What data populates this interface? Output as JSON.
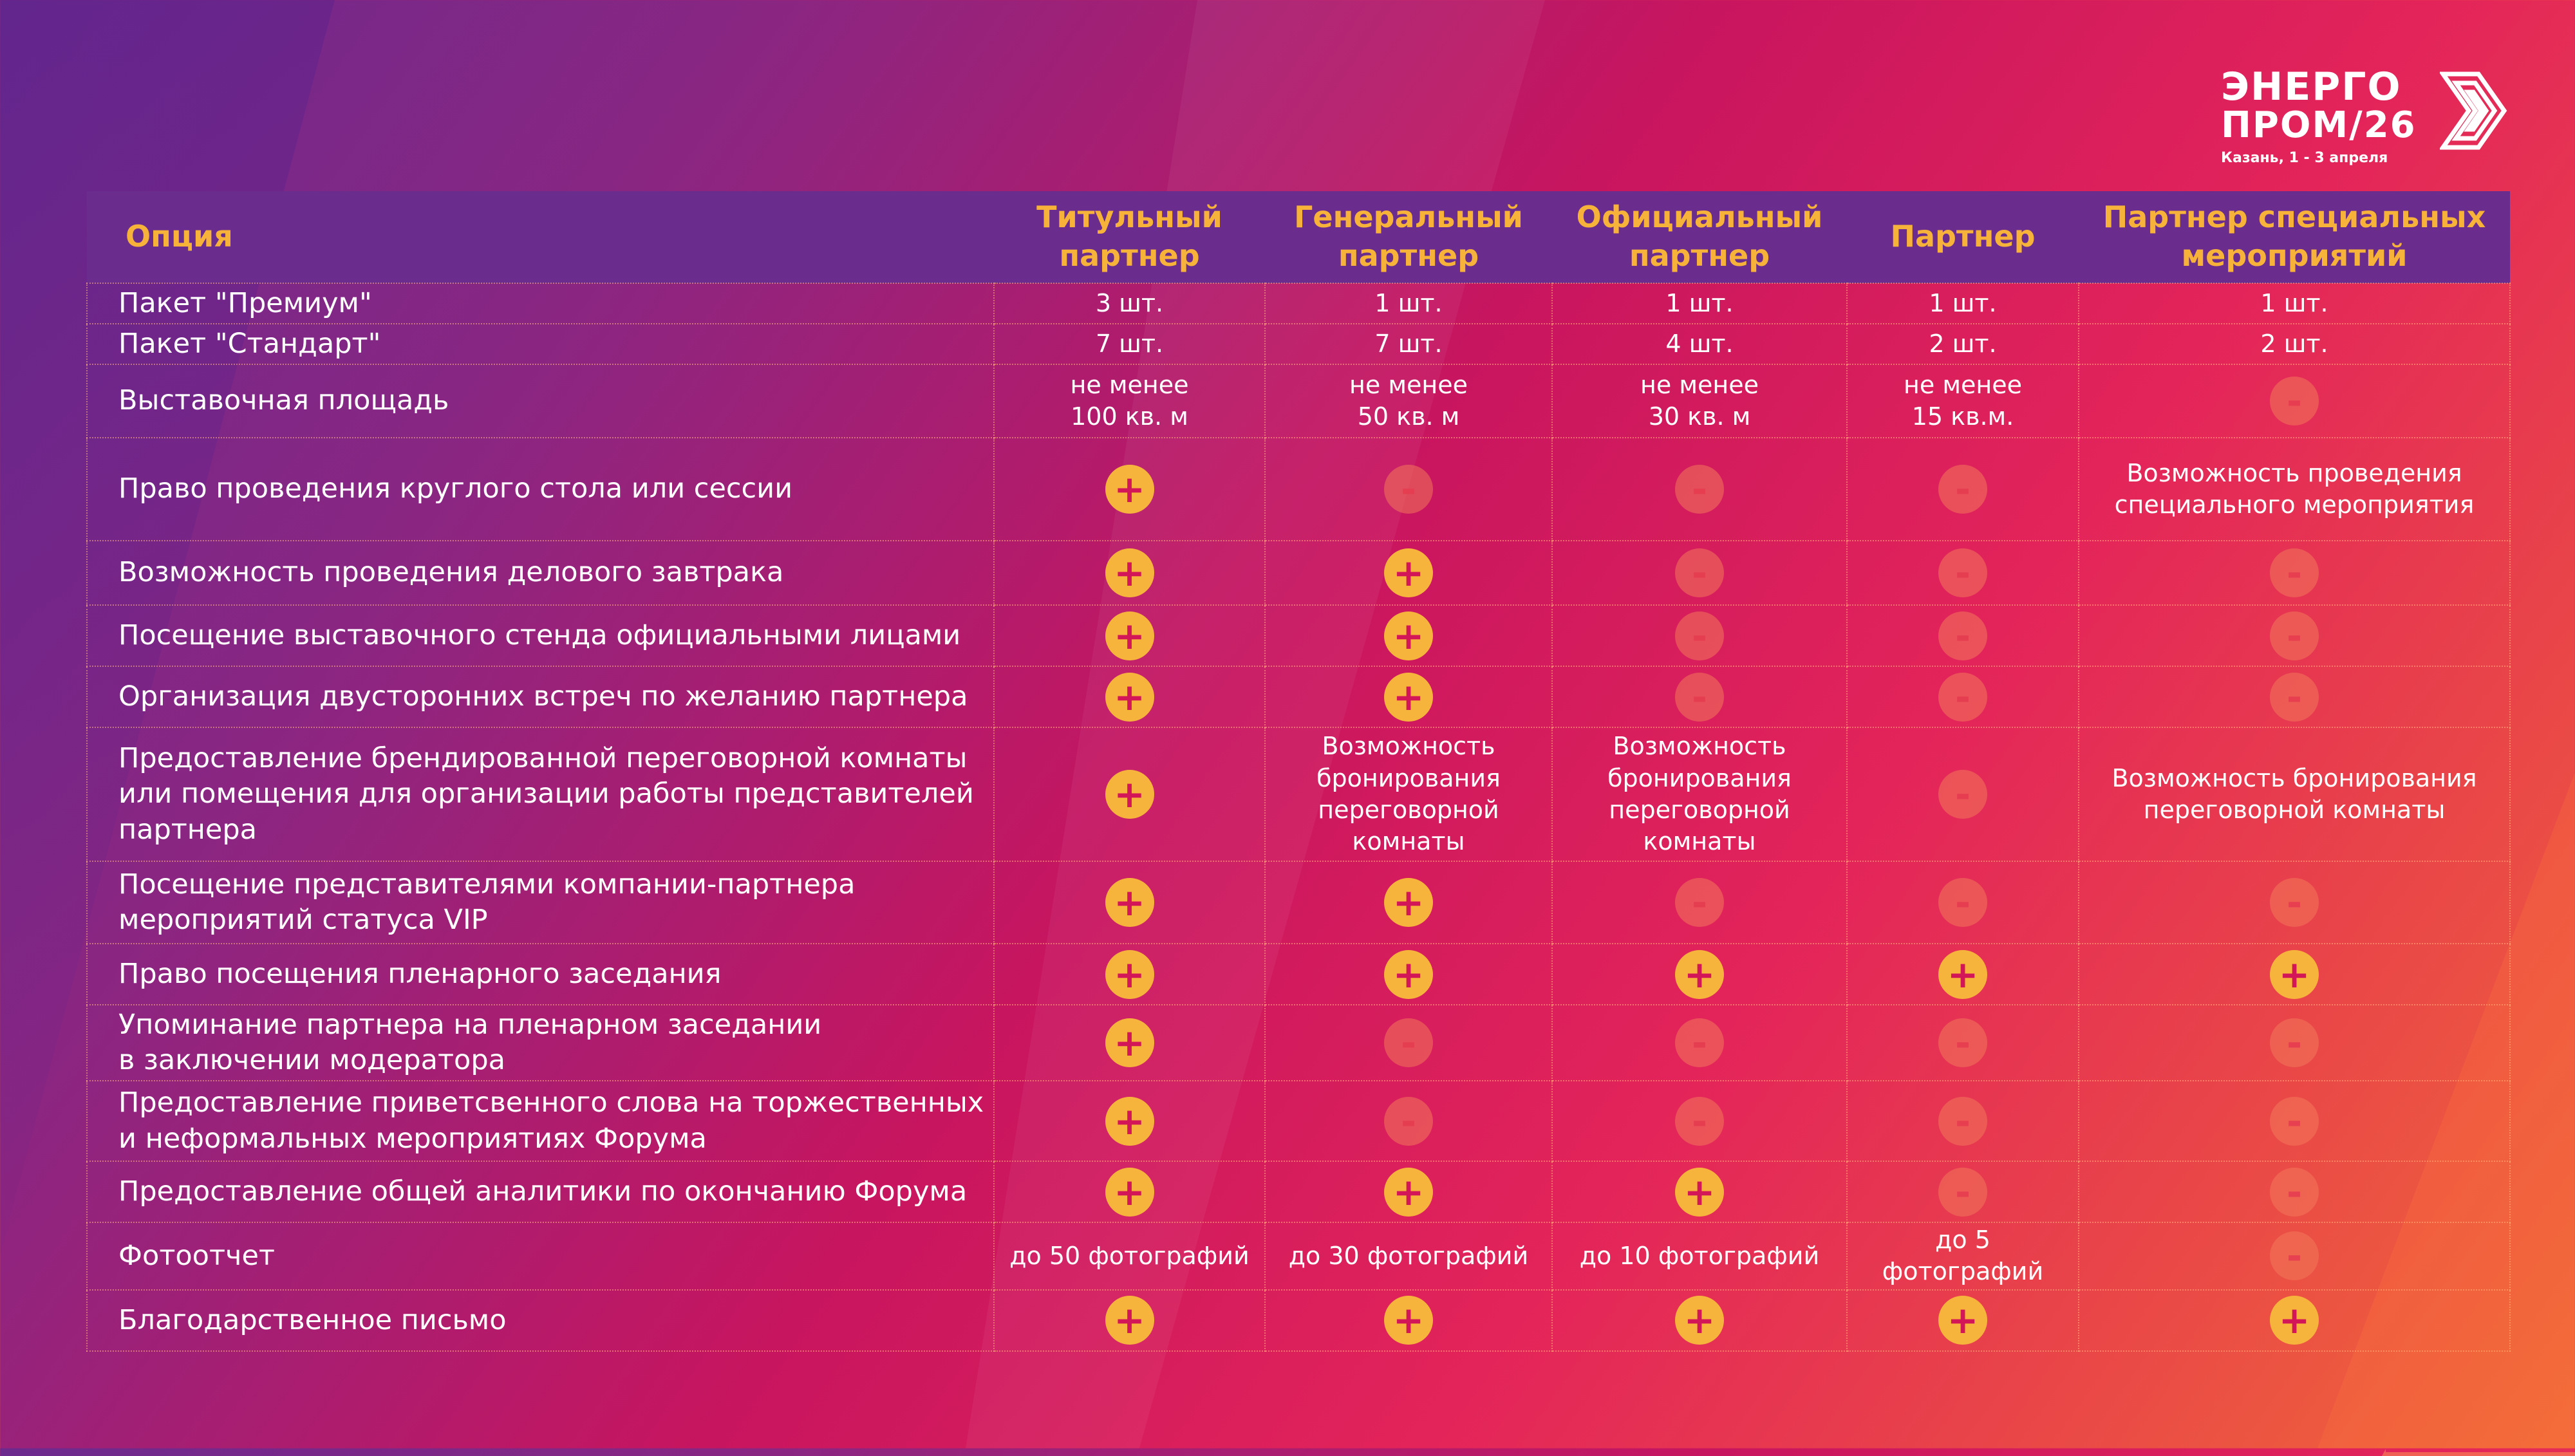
{
  "brand": {
    "line1": "ЭНЕРГО",
    "line2": "ПРОМ/26",
    "subtitle": "Казань, 1 - 3 апреля",
    "mark_icon": "chevron-arrows-icon"
  },
  "colors": {
    "plus": "#f6b43c",
    "minus": "#f2785a",
    "header_bg": "#6a2d8e",
    "header_text": "#f7b23a"
  },
  "table": {
    "headers": [
      "Опция",
      "Титульный партнер",
      "Генеральный партнер",
      "Официальный партнер",
      "Партнер",
      "Партнер специальных мероприятий"
    ],
    "rows": [
      {
        "label": "Пакет \"Премиум\"",
        "cells": [
          {
            "type": "text",
            "value": "3 шт."
          },
          {
            "type": "text",
            "value": "1 шт."
          },
          {
            "type": "text",
            "value": "1 шт."
          },
          {
            "type": "text",
            "value": "1 шт."
          },
          {
            "type": "text",
            "value": "1 шт."
          }
        ]
      },
      {
        "label": "Пакет \"Стандарт\"",
        "cells": [
          {
            "type": "text",
            "value": "7 шт."
          },
          {
            "type": "text",
            "value": "7 шт."
          },
          {
            "type": "text",
            "value": "4 шт."
          },
          {
            "type": "text",
            "value": "2 шт."
          },
          {
            "type": "text",
            "value": "2 шт."
          }
        ]
      },
      {
        "label": "Выставочная площадь",
        "cells": [
          {
            "type": "text",
            "value": "не менее\n100 кв. м"
          },
          {
            "type": "text",
            "value": "не менее\n50 кв. м"
          },
          {
            "type": "text",
            "value": "не менее\n30 кв. м"
          },
          {
            "type": "text",
            "value": "не менее\n15 кв.м."
          },
          {
            "type": "mark",
            "value": "-"
          }
        ]
      },
      {
        "label": "Право проведения круглого стола или сессии",
        "cells": [
          {
            "type": "mark",
            "value": "+"
          },
          {
            "type": "mark",
            "value": "-"
          },
          {
            "type": "mark",
            "value": "-"
          },
          {
            "type": "mark",
            "value": "-"
          },
          {
            "type": "text",
            "value": "Возможность проведения\nспециального мероприятия"
          }
        ]
      },
      {
        "label": "Возможность проведения делового завтрака",
        "cells": [
          {
            "type": "mark",
            "value": "+"
          },
          {
            "type": "mark",
            "value": "+"
          },
          {
            "type": "mark",
            "value": "-"
          },
          {
            "type": "mark",
            "value": "-"
          },
          {
            "type": "mark",
            "value": "-"
          }
        ]
      },
      {
        "label": "Посещение выставочного стенда официальными лицами",
        "cells": [
          {
            "type": "mark",
            "value": "+"
          },
          {
            "type": "mark",
            "value": "+"
          },
          {
            "type": "mark",
            "value": "-"
          },
          {
            "type": "mark",
            "value": "-"
          },
          {
            "type": "mark",
            "value": "-"
          }
        ]
      },
      {
        "label": "Организация двусторонних встреч по желанию партнера",
        "cells": [
          {
            "type": "mark",
            "value": "+"
          },
          {
            "type": "mark",
            "value": "+"
          },
          {
            "type": "mark",
            "value": "-"
          },
          {
            "type": "mark",
            "value": "-"
          },
          {
            "type": "mark",
            "value": "-"
          }
        ]
      },
      {
        "label": "Предоставление брендированной переговорной комнаты\nили помещения для организации работы представителей\nпартнера",
        "cells": [
          {
            "type": "mark",
            "value": "+"
          },
          {
            "type": "text",
            "value": "Возможность\nбронирования\nпереговорной\nкомнаты"
          },
          {
            "type": "text",
            "value": "Возможность\nбронирования\nпереговорной\nкомнаты"
          },
          {
            "type": "mark",
            "value": "-"
          },
          {
            "type": "text",
            "value": "Возможность бронирования\nпереговорной комнаты"
          }
        ]
      },
      {
        "label": "Посещение представителями компании-партнера\nмероприятий статуса VIP",
        "cells": [
          {
            "type": "mark",
            "value": "+"
          },
          {
            "type": "mark",
            "value": "+"
          },
          {
            "type": "mark",
            "value": "-"
          },
          {
            "type": "mark",
            "value": "-"
          },
          {
            "type": "mark",
            "value": "-"
          }
        ]
      },
      {
        "label": "Право посещения пленарного заседания",
        "cells": [
          {
            "type": "mark",
            "value": "+"
          },
          {
            "type": "mark",
            "value": "+"
          },
          {
            "type": "mark",
            "value": "+"
          },
          {
            "type": "mark",
            "value": "+"
          },
          {
            "type": "mark",
            "value": "+"
          }
        ]
      },
      {
        "label": "Упоминание партнера на пленарном заседании\nв заключении модератора",
        "cells": [
          {
            "type": "mark",
            "value": "+"
          },
          {
            "type": "mark",
            "value": "-"
          },
          {
            "type": "mark",
            "value": "-"
          },
          {
            "type": "mark",
            "value": "-"
          },
          {
            "type": "mark",
            "value": "-"
          }
        ]
      },
      {
        "label": "Предоставление приветсвенного слова на торжественных\nи неформальных мероприятиях Форума",
        "cells": [
          {
            "type": "mark",
            "value": "+"
          },
          {
            "type": "mark",
            "value": "-"
          },
          {
            "type": "mark",
            "value": "-"
          },
          {
            "type": "mark",
            "value": "-"
          },
          {
            "type": "mark",
            "value": "-"
          }
        ]
      },
      {
        "label": "Предоставление общей аналитики по окончанию Форума",
        "cells": [
          {
            "type": "mark",
            "value": "+"
          },
          {
            "type": "mark",
            "value": "+"
          },
          {
            "type": "mark",
            "value": "+"
          },
          {
            "type": "mark",
            "value": "-"
          },
          {
            "type": "mark",
            "value": "-"
          }
        ]
      },
      {
        "label": "Фотоотчет",
        "cells": [
          {
            "type": "text",
            "value": "до 50 фотографий"
          },
          {
            "type": "text",
            "value": "до 30 фотографий"
          },
          {
            "type": "text",
            "value": "до 10 фотографий"
          },
          {
            "type": "text",
            "value": "до 5 фотографий"
          },
          {
            "type": "mark",
            "value": "-"
          }
        ]
      },
      {
        "label": "Благодарственное письмо",
        "cells": [
          {
            "type": "mark",
            "value": "+"
          },
          {
            "type": "mark",
            "value": "+"
          },
          {
            "type": "mark",
            "value": "+"
          },
          {
            "type": "mark",
            "value": "+"
          },
          {
            "type": "mark",
            "value": "+"
          }
        ]
      }
    ]
  }
}
